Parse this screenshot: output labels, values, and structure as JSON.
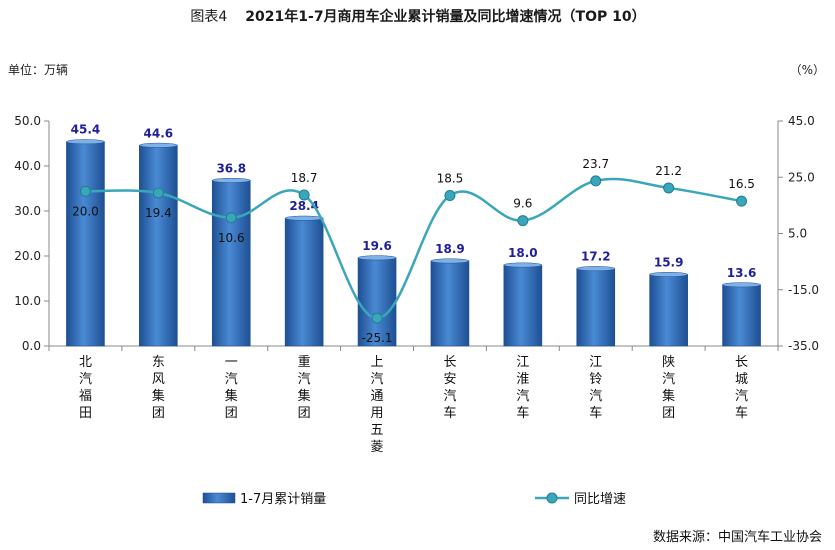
{
  "title_prefix": "图表4",
  "title": "2021年1-7月商用车企业累计销量及同比增速情况（TOP 10）",
  "left_unit": "单位：万辆",
  "right_unit": "（%）",
  "source": "数据来源：中国汽车工业协会",
  "colors": {
    "bar": "#3a78c4",
    "bar_dark": "#1e4f93",
    "line": "#3aa6b9",
    "bar_label": "#1f1f9c"
  },
  "chart_data": {
    "type": "bar",
    "categories": [
      "北汽福田",
      "东风集团",
      "一汽集团",
      "重汽集团",
      "上汽通用五菱",
      "长安汽车",
      "江淮汽车",
      "江铃汽车",
      "陕汽集团",
      "长城汽车"
    ],
    "series": [
      {
        "name": "1-7月累计销量",
        "type": "bar",
        "axis": "left",
        "values": [
          45.4,
          44.6,
          36.8,
          28.4,
          19.6,
          18.9,
          18.0,
          17.2,
          15.9,
          13.6
        ],
        "labels": [
          "45.4",
          "44.6",
          "36.8",
          "28.4",
          "19.6",
          "18.9",
          "18.0",
          "17.2",
          "15.9",
          "13.6"
        ]
      },
      {
        "name": "同比增速",
        "type": "line",
        "axis": "right",
        "values": [
          20.0,
          19.4,
          10.6,
          18.7,
          -25.1,
          18.5,
          9.6,
          23.7,
          21.2,
          16.5
        ],
        "labels": [
          "20.0",
          "19.4",
          "10.6",
          "18.7",
          "-25.1",
          "18.5",
          "9.6",
          "23.7",
          "21.2",
          "16.5"
        ]
      }
    ],
    "left_axis": {
      "ylim": [
        0,
        50
      ],
      "ticks": [
        "0.0",
        "10.0",
        "20.0",
        "30.0",
        "40.0",
        "50.0"
      ]
    },
    "right_axis": {
      "ylim": [
        -35,
        45
      ],
      "ticks": [
        "-35.0",
        "-15.0",
        "5.0",
        "25.0",
        "45.0"
      ]
    },
    "grid": false,
    "legend": "bottom"
  }
}
